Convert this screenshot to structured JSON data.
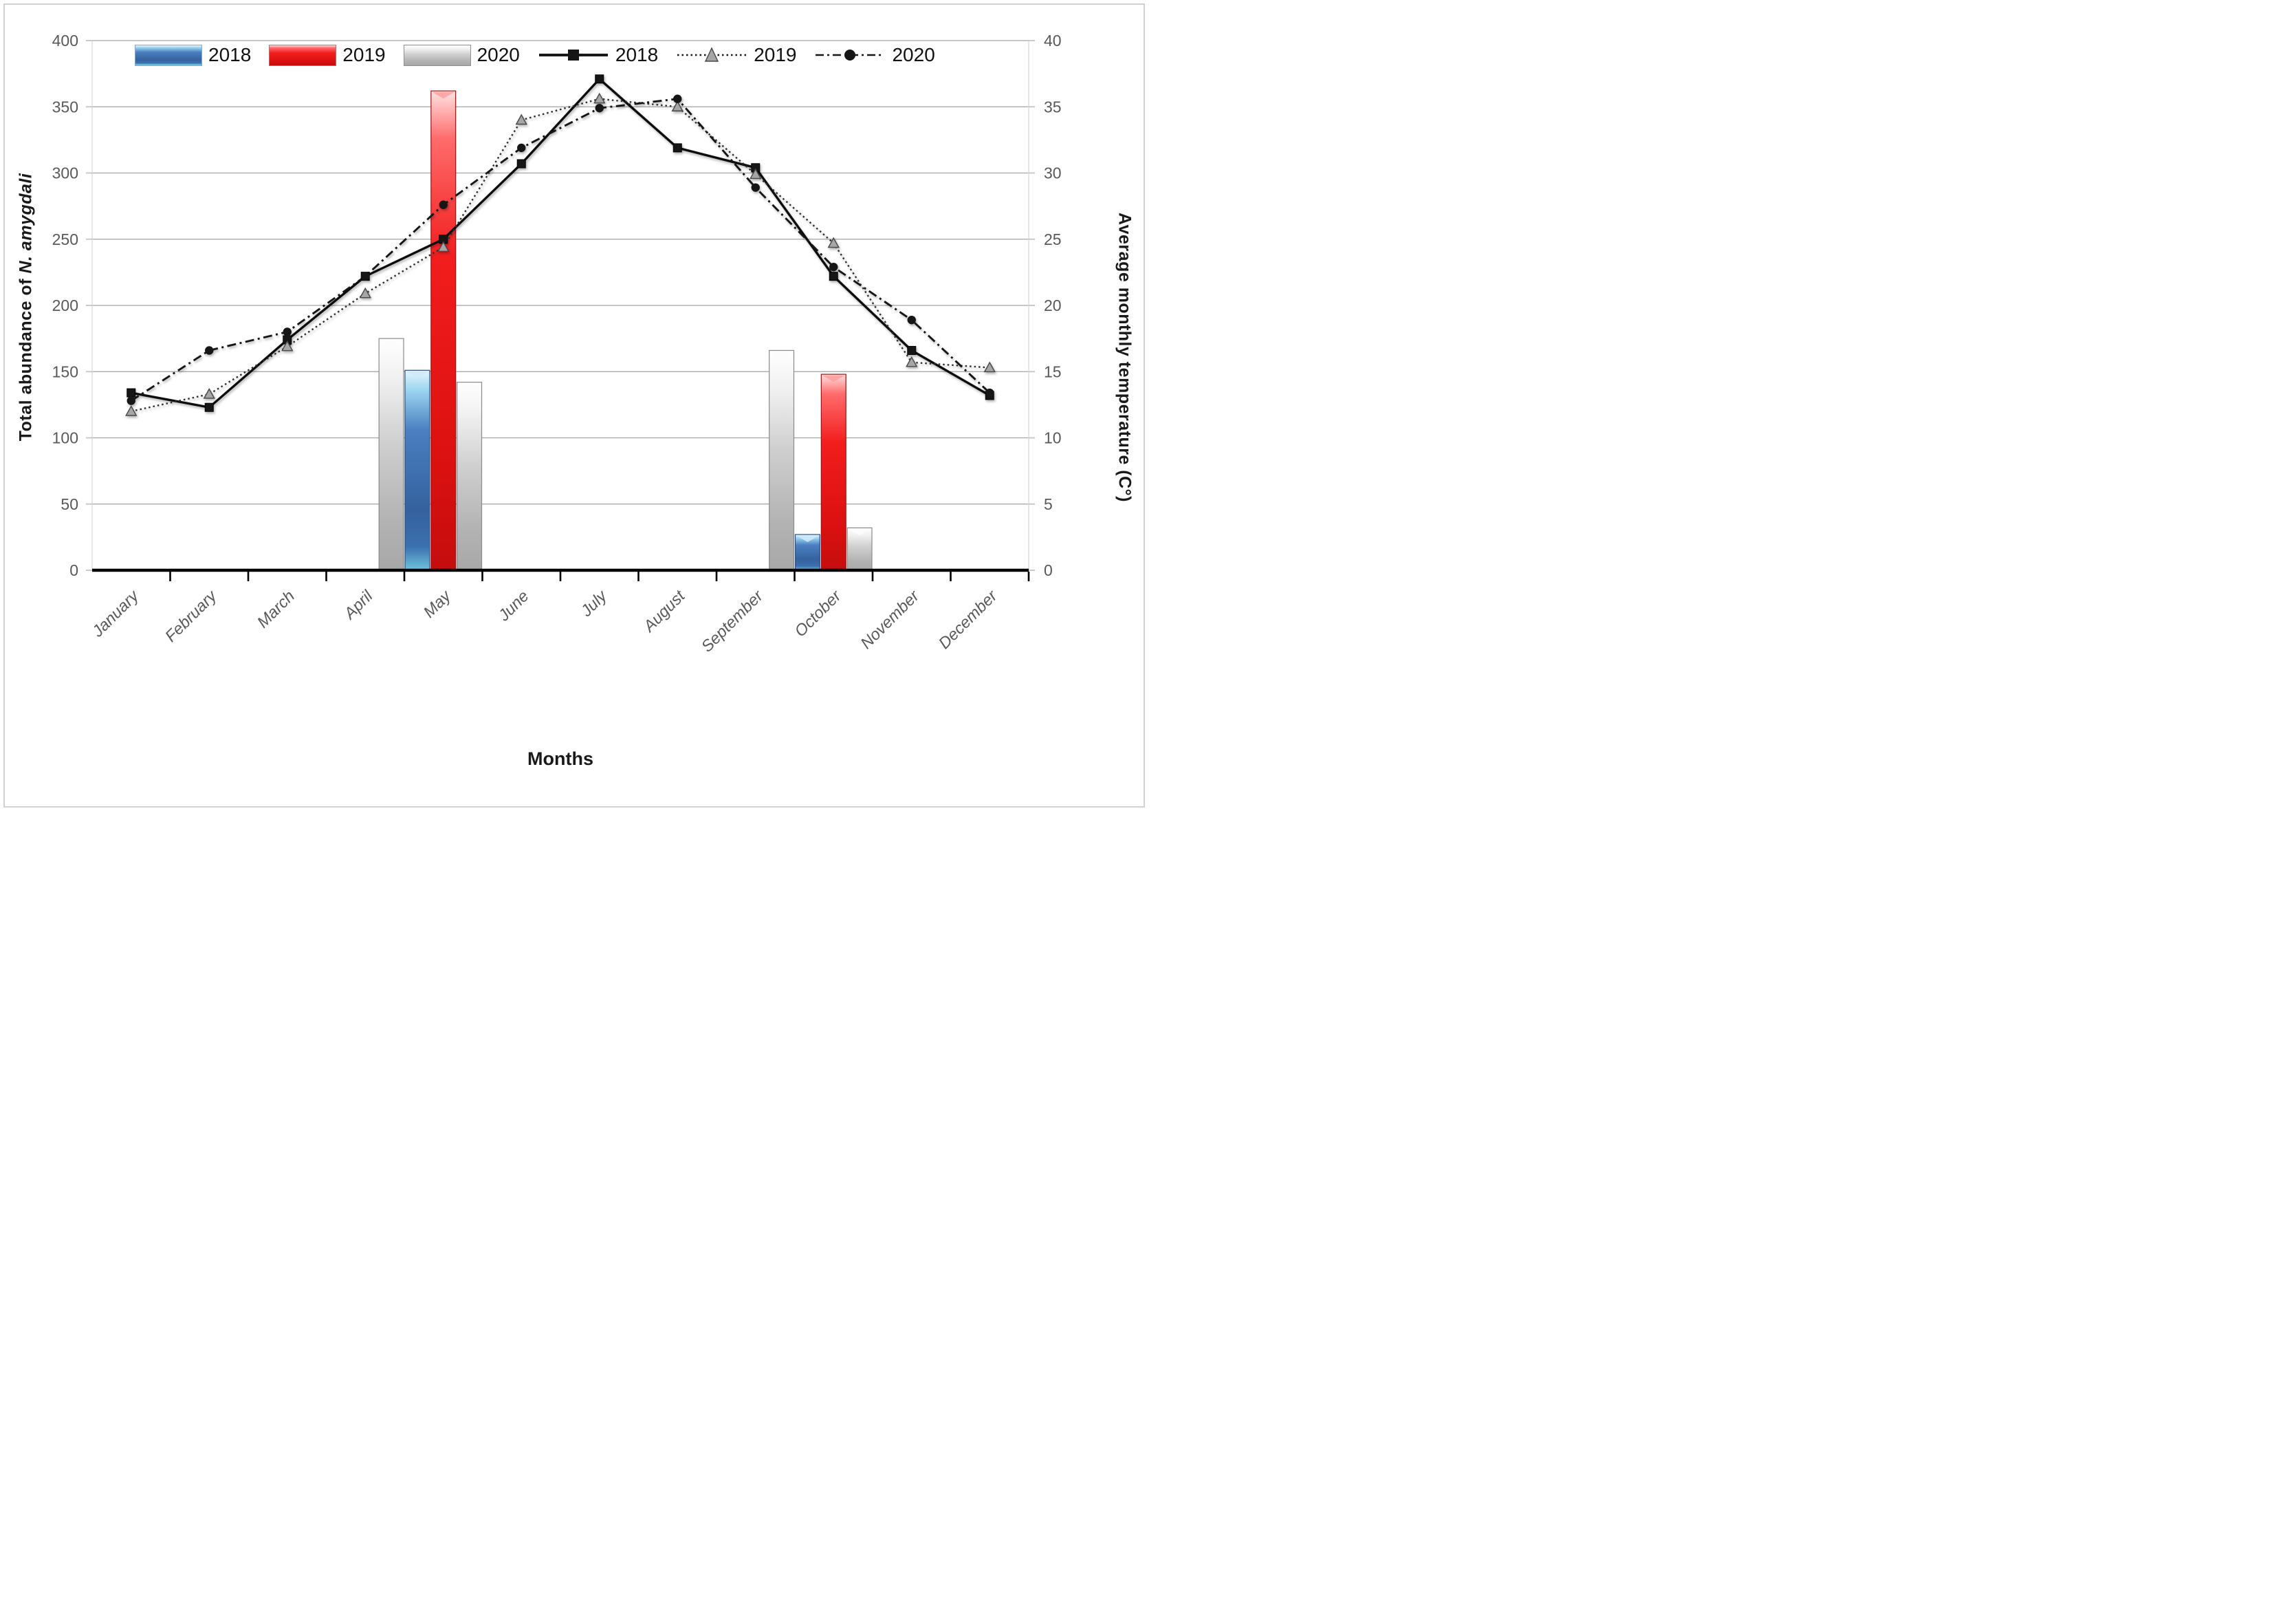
{
  "figure": {
    "left_axis_title_prefix": "Total abundance of ",
    "left_axis_title_species": "N. amygdali",
    "right_axis_title": "Average monthly temperature (C°)",
    "x_axis_title": "Months"
  },
  "legend": {
    "bar_items": [
      {
        "label": "2018",
        "color_class": "sw-blue"
      },
      {
        "label": "2019",
        "color_class": "sw-red"
      },
      {
        "label": "2020",
        "color_class": "sw-gray"
      }
    ],
    "line_items": [
      {
        "label": "2018",
        "style": "solid",
        "marker": "square"
      },
      {
        "label": "2019",
        "style": "dotted",
        "marker": "triangle"
      },
      {
        "label": "2020",
        "style": "dashdot",
        "marker": "circle"
      }
    ]
  },
  "chart_data": {
    "type": "bar+line",
    "title": "",
    "categories": [
      "January",
      "February",
      "March",
      "April",
      "May",
      "June",
      "July",
      "August",
      "September",
      "October",
      "November",
      "December"
    ],
    "xlabel": "Months",
    "left_axis": {
      "label": "Total abundance of N. amygdali",
      "range": [
        0,
        400
      ],
      "tick_step": 50,
      "ticks": [
        0,
        50,
        100,
        150,
        200,
        250,
        300,
        350,
        400
      ]
    },
    "right_axis": {
      "label": "Average monthly temperature (C°)",
      "range": [
        0,
        40
      ],
      "tick_step": 5,
      "ticks": [
        0,
        5,
        10,
        15,
        20,
        25,
        30,
        35,
        40
      ]
    },
    "grid": true,
    "legend_position": "top",
    "bar_series": [
      {
        "name": "2018",
        "axis": "left",
        "color": "#3f6fb0",
        "values": [
          0,
          0,
          0,
          0,
          151,
          0,
          0,
          0,
          0,
          27,
          0,
          0
        ]
      },
      {
        "name": "2019",
        "axis": "left",
        "color": "#ee1414",
        "values": [
          0,
          0,
          0,
          0,
          362,
          0,
          0,
          0,
          0,
          148,
          0,
          0
        ]
      },
      {
        "name": "2020",
        "axis": "left",
        "color": "#bfbfbf",
        "values": [
          0,
          0,
          0,
          175,
          142,
          0,
          0,
          0,
          166,
          32,
          0,
          0
        ]
      }
    ],
    "line_series": [
      {
        "name": "2018",
        "axis": "right",
        "line": "solid",
        "marker": "square",
        "color": "#0d0d0d",
        "values_celsius": [
          13.4,
          12.3,
          17.4,
          22.2,
          25.0,
          30.7,
          37.1,
          31.9,
          30.4,
          22.2,
          16.6,
          13.2
        ]
      },
      {
        "name": "2019",
        "axis": "right",
        "line": "dotted",
        "marker": "triangle",
        "color": "#2f2f2f",
        "values_celsius": [
          12.0,
          13.3,
          16.9,
          20.9,
          24.4,
          34.0,
          35.6,
          35.0,
          29.9,
          24.7,
          15.7,
          15.3
        ]
      },
      {
        "name": "2020",
        "axis": "right",
        "line": "dashdot",
        "marker": "circle",
        "color": "#151515",
        "values_celsius": [
          12.8,
          16.6,
          18.0,
          22.2,
          27.6,
          31.9,
          34.9,
          35.6,
          28.9,
          22.9,
          18.9,
          13.4
        ]
      }
    ]
  }
}
